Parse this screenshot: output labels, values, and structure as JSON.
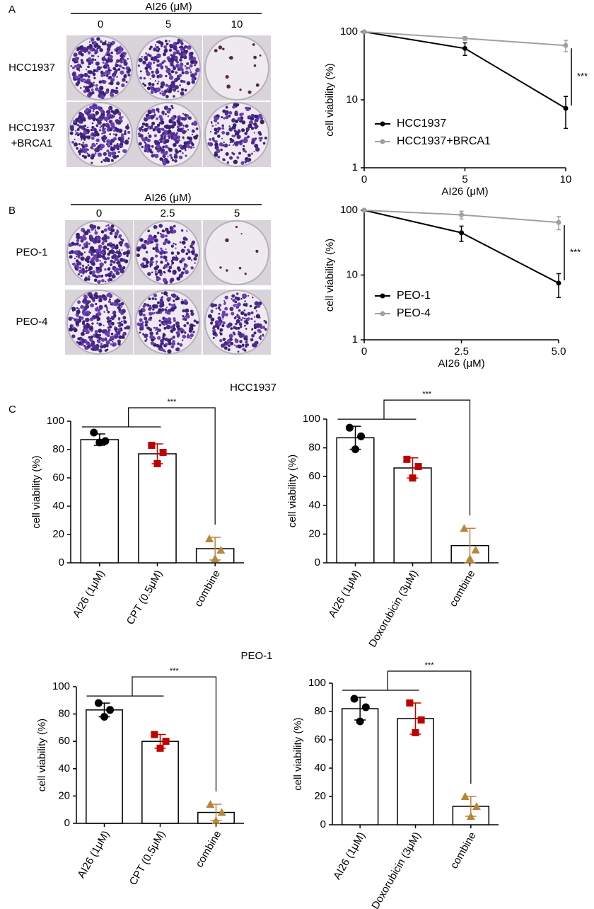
{
  "panel_labels": [
    "A",
    "B",
    "C"
  ],
  "sections": [
    "HCC1937",
    "PEO-1"
  ],
  "plates": [
    {
      "title": "AI26 (μM)",
      "columns": [
        "0",
        "5",
        "10"
      ],
      "rows": [
        [
          "HCC1937"
        ],
        [
          "HCC1937",
          "+BRCA1"
        ]
      ]
    },
    {
      "title": "AI26 (μM)",
      "columns": [
        "0",
        "2.5",
        "5"
      ],
      "rows": [
        [
          "PEO-1"
        ],
        [
          "PEO-4"
        ]
      ]
    }
  ],
  "chart_data": [
    {
      "type": "line",
      "x_label": "AI26 (μM)",
      "y_label": "cell viability (%)",
      "log_y": true,
      "x": [
        0,
        5,
        10
      ],
      "xlim": [
        0,
        10
      ],
      "xticks": [
        0,
        5,
        10
      ],
      "ylim": [
        1,
        100
      ],
      "yticks": [
        1,
        10,
        100
      ],
      "legend": "lower left",
      "annotation": "***",
      "series": [
        {
          "name": "HCC1937",
          "color": "#000000",
          "values": [
            100,
            57,
            7.5
          ],
          "errors": [
            0,
            12,
            3.7
          ]
        },
        {
          "name": "HCC1937+BRCA1",
          "color": "#a0a0a0",
          "values": [
            100,
            80,
            63
          ],
          "errors": [
            0,
            5,
            12
          ]
        }
      ]
    },
    {
      "type": "line",
      "x_label": "AI26 (μM)",
      "y_label": "cell viability (%)",
      "log_y": true,
      "x": [
        0,
        2.5,
        5
      ],
      "xlim": [
        0,
        5
      ],
      "xticks": [
        0,
        2.5,
        {
          "value": 5,
          "label": "5.0"
        }
      ],
      "ylim": [
        1,
        100
      ],
      "yticks": [
        1,
        10,
        100
      ],
      "legend": "lower left",
      "annotation": "***",
      "series": [
        {
          "name": "PEO-1",
          "color": "#000000",
          "values": [
            100,
            45,
            7.5
          ],
          "errors": [
            0,
            12,
            3
          ]
        },
        {
          "name": "PEO-4",
          "color": "#a0a0a0",
          "values": [
            100,
            85,
            65
          ],
          "errors": [
            0,
            12,
            15
          ]
        }
      ]
    },
    {
      "type": "bar",
      "y_label": "cell viability (%)",
      "categories": [
        "AI26 (1μM)",
        "CPT (0.5μM)",
        "combine"
      ],
      "values": [
        87,
        77,
        10
      ],
      "errors": [
        4,
        7,
        8
      ],
      "points": [
        [
          92,
          85,
          86
        ],
        [
          83,
          70,
          78
        ],
        [
          17,
          3,
          9
        ]
      ],
      "bar_color": "#ffffff",
      "point_colors": [
        "#000000",
        "#c00000",
        "#b8863b"
      ],
      "point_markers": [
        "circle",
        "square",
        "triangle"
      ],
      "ylim": [
        0,
        100
      ],
      "yticks": [
        0,
        20,
        40,
        60,
        80,
        100
      ],
      "annotation": "***"
    },
    {
      "type": "bar",
      "y_label": "cell viability (%)",
      "categories": [
        "AI26 (1μM)",
        "Doxorubicin (3μM)",
        "combine"
      ],
      "values": [
        87,
        66,
        12
      ],
      "errors": [
        8,
        7,
        12
      ],
      "points": [
        [
          94,
          79,
          88
        ],
        [
          72,
          59,
          67
        ],
        [
          24,
          3,
          9
        ]
      ],
      "bar_color": "#ffffff",
      "point_colors": [
        "#000000",
        "#c00000",
        "#b8863b"
      ],
      "point_markers": [
        "circle",
        "square",
        "triangle"
      ],
      "ylim": [
        0,
        100
      ],
      "yticks": [
        0,
        20,
        40,
        60,
        80,
        100
      ],
      "annotation": "***"
    },
    {
      "type": "bar",
      "y_label": "cell viability (%)",
      "categories": [
        "AI26 (1μM)",
        "CPT (0.5μM)",
        "combine"
      ],
      "values": [
        83,
        60,
        8
      ],
      "errors": [
        5,
        5,
        6
      ],
      "points": [
        [
          88,
          78,
          83
        ],
        [
          65,
          55,
          60
        ],
        [
          14,
          2,
          8
        ]
      ],
      "bar_color": "#ffffff",
      "point_colors": [
        "#000000",
        "#c00000",
        "#b8863b"
      ],
      "point_markers": [
        "circle",
        "square",
        "triangle"
      ],
      "ylim": [
        0,
        100
      ],
      "yticks": [
        0,
        20,
        40,
        60,
        80,
        100
      ],
      "annotation": "***"
    },
    {
      "type": "bar",
      "y_label": "cell viability (%)",
      "categories": [
        "AI26 (1μM)",
        "Doxorubicin (3μM)",
        "combine"
      ],
      "values": [
        82,
        75,
        13
      ],
      "errors": [
        8,
        11,
        7
      ],
      "points": [
        [
          89,
          73,
          83
        ],
        [
          86,
          65,
          74
        ],
        [
          20,
          6,
          13
        ]
      ],
      "bar_color": "#ffffff",
      "point_colors": [
        "#000000",
        "#c00000",
        "#b8863b"
      ],
      "point_markers": [
        "circle",
        "square",
        "triangle"
      ],
      "ylim": [
        0,
        100
      ],
      "yticks": [
        0,
        20,
        40,
        60,
        80,
        100
      ],
      "annotation": "***"
    }
  ]
}
